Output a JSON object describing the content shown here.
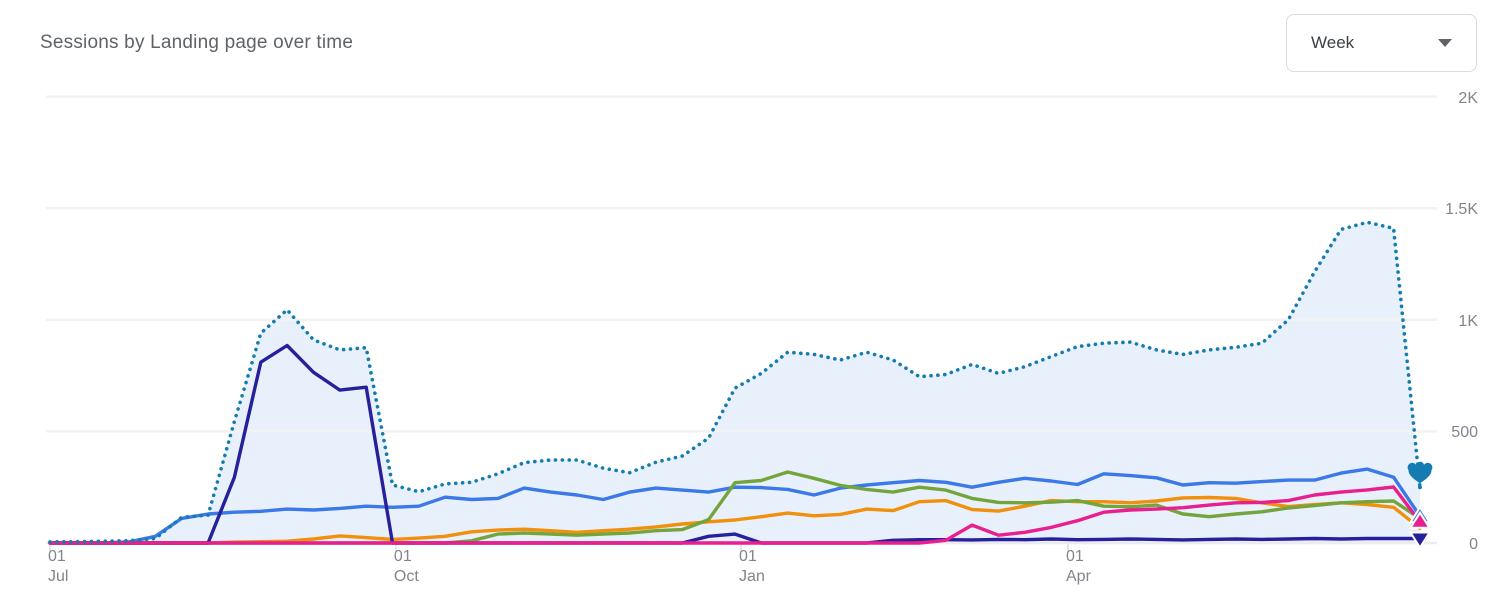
{
  "header": {
    "title": "Sessions by Landing page over time"
  },
  "controls": {
    "granularity": {
      "value": "Week",
      "icon": "dropdown-caret"
    }
  },
  "chart_data": {
    "type": "line",
    "title": "Sessions by Landing page over time",
    "x_unit": "week",
    "n_points": 53,
    "ylim": [
      0,
      2000
    ],
    "grid": "horizontal",
    "legend": "none",
    "y_ticks": [
      {
        "label": "0",
        "value": 0
      },
      {
        "label": "500",
        "value": 500
      },
      {
        "label": "1K",
        "value": 1000
      },
      {
        "label": "1.5K",
        "value": 1500
      },
      {
        "label": "2K",
        "value": 2000
      }
    ],
    "x_ticks": [
      {
        "line1": "01",
        "line2": "Jul",
        "week_index": 0
      },
      {
        "line1": "01",
        "line2": "Oct",
        "week_index": 13.13
      },
      {
        "line1": "01",
        "line2": "Jan",
        "week_index": 26.23
      },
      {
        "line1": "01",
        "line2": "Apr",
        "week_index": 38.64
      }
    ],
    "series": [
      {
        "name": "landing-page-blue",
        "style": "solid",
        "color": "#3b78e8",
        "end_marker": "triangle-up",
        "values": [
          0,
          0,
          0,
          5,
          30,
          110,
          130,
          138,
          142,
          152,
          148,
          155,
          165,
          160,
          165,
          205,
          195,
          200,
          246,
          228,
          215,
          195,
          228,
          246,
          237,
          228,
          250,
          248,
          240,
          215,
          246,
          260,
          270,
          280,
          272,
          250,
          272,
          290,
          278,
          262,
          310,
          302,
          292,
          260,
          270,
          268,
          275,
          282,
          282,
          313,
          331,
          295,
          120
        ]
      },
      {
        "name": "landing-page-orange",
        "style": "solid",
        "color": "#f0900d",
        "end_marker": null,
        "values": [
          0,
          0,
          0,
          0,
          0,
          0,
          0,
          4,
          6,
          8,
          18,
          32,
          24,
          16,
          22,
          30,
          50,
          58,
          62,
          55,
          48,
          55,
          62,
          72,
          85,
          95,
          103,
          118,
          134,
          122,
          128,
          152,
          145,
          185,
          190,
          150,
          143,
          165,
          190,
          185,
          185,
          180,
          188,
          202,
          204,
          200,
          180,
          163,
          172,
          180,
          172,
          160,
          66
        ]
      },
      {
        "name": "landing-page-green",
        "style": "solid",
        "color": "#74a53d",
        "end_marker": null,
        "values": [
          0,
          0,
          0,
          0,
          0,
          0,
          0,
          0,
          0,
          0,
          0,
          0,
          0,
          0,
          0,
          0,
          10,
          40,
          45,
          40,
          35,
          40,
          45,
          55,
          60,
          105,
          270,
          280,
          318,
          290,
          258,
          240,
          228,
          250,
          237,
          200,
          182,
          180,
          183,
          190,
          165,
          162,
          170,
          130,
          118,
          130,
          140,
          157,
          168,
          180,
          185,
          188,
          110
        ]
      },
      {
        "name": "landing-page-navy",
        "style": "solid",
        "color": "#26219a",
        "end_marker": "triangle-down",
        "values": [
          0,
          0,
          0,
          0,
          0,
          0,
          0,
          295,
          810,
          885,
          765,
          685,
          698,
          0,
          0,
          0,
          0,
          0,
          0,
          0,
          0,
          0,
          0,
          0,
          0,
          30,
          40,
          0,
          0,
          0,
          0,
          0,
          12,
          15,
          15,
          14,
          16,
          15,
          18,
          15,
          16,
          18,
          16,
          14,
          16,
          18,
          16,
          18,
          20,
          18,
          20,
          20,
          20
        ]
      },
      {
        "name": "landing-page-pink",
        "style": "solid",
        "color": "#e91e8f",
        "end_marker": "triangle-up",
        "values": [
          0,
          0,
          0,
          0,
          0,
          0,
          0,
          0,
          0,
          0,
          0,
          0,
          0,
          0,
          0,
          0,
          0,
          0,
          0,
          0,
          0,
          0,
          0,
          0,
          0,
          0,
          0,
          0,
          0,
          0,
          0,
          0,
          0,
          0,
          12,
          80,
          35,
          48,
          70,
          100,
          138,
          148,
          152,
          158,
          170,
          180,
          182,
          190,
          215,
          228,
          238,
          251,
          95
        ]
      },
      {
        "name": "total-sessions",
        "style": "dotted",
        "color": "#147cb0",
        "area_fill": "#e8f1fb",
        "end_marker": "fan-down",
        "values": [
          5,
          6,
          8,
          10,
          20,
          115,
          125,
          545,
          940,
          1045,
          910,
          865,
          875,
          260,
          230,
          265,
          272,
          310,
          360,
          372,
          372,
          335,
          315,
          362,
          390,
          470,
          694,
          760,
          855,
          845,
          820,
          855,
          820,
          745,
          755,
          800,
          760,
          790,
          835,
          880,
          895,
          900,
          865,
          845,
          865,
          877,
          895,
          1000,
          1215,
          1405,
          1437,
          1410,
          250
        ]
      }
    ],
    "colors": {
      "gridline": "#f2f2f2",
      "baseline": "#ececec",
      "axis_label": "#80868b"
    }
  }
}
